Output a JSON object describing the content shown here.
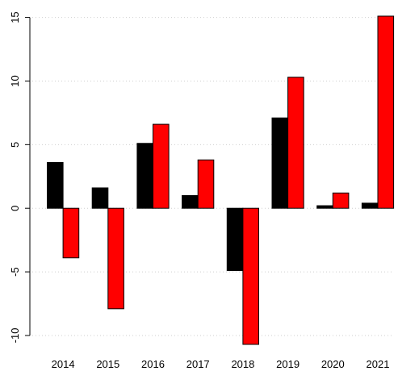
{
  "chart_data": {
    "type": "bar",
    "categories": [
      "2014",
      "2015",
      "2016",
      "2017",
      "2018",
      "2019",
      "2020",
      "2021"
    ],
    "series": [
      {
        "values": [
          3.6,
          1.6,
          5.1,
          1.0,
          -4.9,
          7.1,
          0.2,
          0.4
        ],
        "color": "#000000"
      },
      {
        "values": [
          -3.9,
          -7.9,
          6.6,
          3.8,
          -10.7,
          10.3,
          1.2,
          15.1
        ],
        "color": "#ff0000"
      }
    ],
    "yticks": [
      -10,
      -5,
      0,
      5,
      10,
      15
    ],
    "ylim": [
      -10.7,
      15.1
    ],
    "grid": "horizontal dotted",
    "legend": "none",
    "title": "",
    "xlabel": "",
    "ylabel": ""
  }
}
